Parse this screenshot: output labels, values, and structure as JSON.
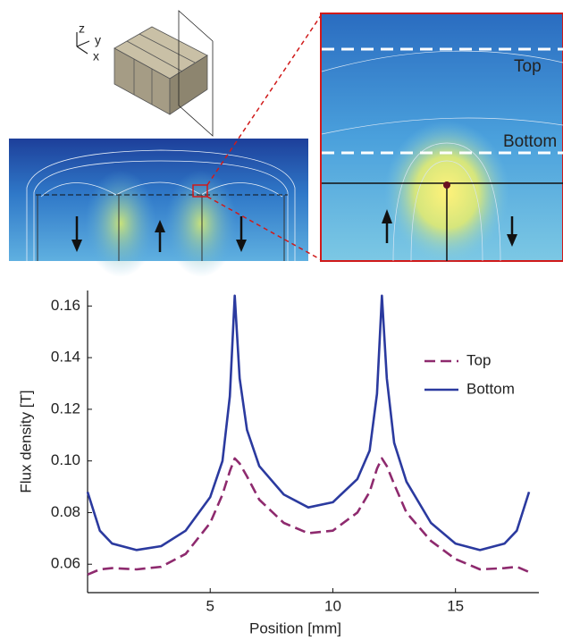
{
  "illustration": {
    "axis_labels": [
      "z",
      "y",
      "x"
    ],
    "zoom_labels": [
      "Top",
      "Bottom"
    ]
  },
  "chart_data": {
    "type": "line",
    "x_label": "Position [mm]",
    "y_label": "Flux density [T]",
    "x": [
      0,
      0.5,
      1,
      2,
      3,
      4,
      5,
      5.5,
      5.8,
      6,
      6.2,
      6.5,
      7,
      8,
      9,
      10,
      11,
      11.5,
      11.8,
      12,
      12.2,
      12.5,
      13,
      14,
      15,
      16,
      17,
      17.5,
      18
    ],
    "series": [
      {
        "name": "Top",
        "color": "#8e2a6e",
        "dash": true,
        "values": [
          0.056,
          0.058,
          0.0585,
          0.058,
          0.059,
          0.064,
          0.076,
          0.087,
          0.096,
          0.101,
          0.099,
          0.094,
          0.085,
          0.076,
          0.072,
          0.073,
          0.08,
          0.088,
          0.097,
          0.101,
          0.098,
          0.091,
          0.08,
          0.069,
          0.062,
          0.058,
          0.0585,
          0.059,
          0.057
        ]
      },
      {
        "name": "Bottom",
        "color": "#2b3a9f",
        "dash": false,
        "values": [
          0.088,
          0.073,
          0.068,
          0.0655,
          0.067,
          0.073,
          0.086,
          0.1,
          0.125,
          0.164,
          0.132,
          0.112,
          0.098,
          0.087,
          0.082,
          0.084,
          0.093,
          0.104,
          0.126,
          0.164,
          0.132,
          0.107,
          0.092,
          0.076,
          0.068,
          0.0655,
          0.068,
          0.073,
          0.088
        ]
      }
    ],
    "xlim": [
      0,
      18.4
    ],
    "xticks": [
      5,
      10,
      15
    ],
    "ylim": [
      0.049,
      0.166
    ],
    "yticks": [
      0.06,
      0.08,
      {
        "value": 0.1,
        "label": "0.10"
      },
      0.12,
      0.14,
      0.16
    ],
    "legend": "upper right"
  }
}
